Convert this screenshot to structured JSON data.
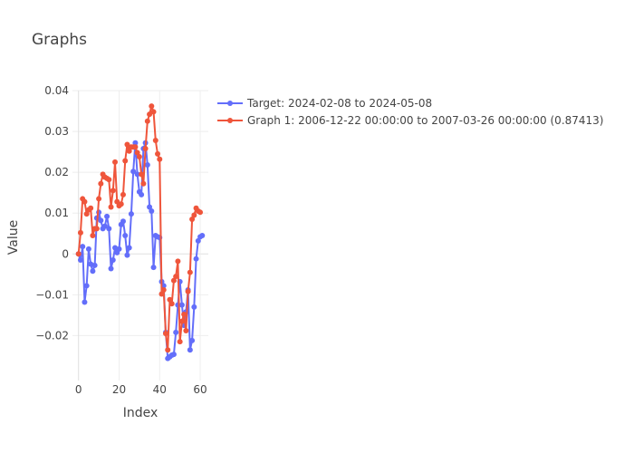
{
  "chart_data": {
    "type": "line",
    "title": "Graphs",
    "xlabel": "Index",
    "ylabel": "Value",
    "xlim": [
      -3,
      64
    ],
    "ylim": [
      -0.031,
      0.04
    ],
    "x_ticks": [
      0,
      20,
      40,
      60
    ],
    "y_ticks": [
      -0.02,
      -0.01,
      0,
      0.01,
      0.02,
      0.03,
      0.04
    ],
    "x_tick_labels": [
      "0",
      "20",
      "40",
      "60"
    ],
    "y_tick_labels": [
      "−0.02",
      "−0.01",
      "0",
      "0.01",
      "0.02",
      "0.03",
      "0.04"
    ],
    "grid": true,
    "legend_position": "right",
    "series": [
      {
        "name": "Target: 2024-02-08 to 2024-05-08",
        "color": "#636efa",
        "x": [
          0,
          1,
          2,
          3,
          4,
          5,
          6,
          7,
          8,
          9,
          10,
          11,
          12,
          13,
          14,
          15,
          16,
          17,
          18,
          19,
          20,
          21,
          22,
          23,
          24,
          25,
          26,
          27,
          28,
          29,
          30,
          31,
          32,
          33,
          34,
          35,
          36,
          37,
          38,
          39,
          40,
          41,
          42,
          43,
          44,
          45,
          46,
          47,
          48,
          49,
          50,
          51,
          52,
          53,
          54,
          55,
          56,
          57,
          58,
          59,
          60,
          61
        ],
        "y": [
          0.0,
          -0.0015,
          0.0018,
          -0.0118,
          -0.0078,
          0.0012,
          -0.0025,
          -0.0042,
          -0.0028,
          0.0088,
          0.0102,
          0.0082,
          0.0062,
          0.0068,
          0.0092,
          0.0062,
          -0.0036,
          -0.0015,
          0.0015,
          0.0003,
          0.0012,
          0.0072,
          0.008,
          0.0045,
          -0.0003,
          0.0015,
          0.0098,
          0.0202,
          0.0272,
          0.0195,
          0.0152,
          0.0145,
          0.0258,
          0.0272,
          0.0218,
          0.0115,
          0.0105,
          -0.0033,
          0.0045,
          0.0042,
          0.004,
          -0.0068,
          -0.0078,
          -0.0192,
          -0.0256,
          -0.0252,
          -0.0248,
          -0.0246,
          -0.0192,
          -0.0125,
          -0.0068,
          -0.0125,
          -0.0175,
          -0.0142,
          -0.0088,
          -0.0235,
          -0.0212,
          -0.013,
          -0.0012,
          0.0032,
          0.0042,
          0.0045
        ]
      },
      {
        "name": "Graph 1: 2006-12-22 00:00:00 to 2007-03-26 00:00:00 (0.87413)",
        "color": "#ef553b",
        "x": [
          0,
          1,
          2,
          3,
          4,
          5,
          6,
          7,
          8,
          9,
          10,
          11,
          12,
          13,
          14,
          15,
          16,
          17,
          18,
          19,
          20,
          21,
          22,
          23,
          24,
          25,
          26,
          27,
          28,
          29,
          30,
          31,
          32,
          33,
          34,
          35,
          36,
          37,
          38,
          39,
          40,
          41,
          42,
          43,
          44,
          45,
          46,
          47,
          48,
          49,
          50,
          51,
          52,
          53,
          54,
          55,
          56,
          57,
          58,
          59,
          60
        ],
        "y": [
          0.0,
          0.0052,
          0.0135,
          0.0128,
          0.0098,
          0.0108,
          0.0112,
          0.0045,
          0.0062,
          0.0062,
          0.0135,
          0.0172,
          0.0195,
          0.0188,
          0.0185,
          0.0182,
          0.0115,
          0.0155,
          0.0225,
          0.0128,
          0.0118,
          0.0122,
          0.0145,
          0.0228,
          0.0268,
          0.0252,
          0.0262,
          0.0262,
          0.0262,
          0.0248,
          0.0238,
          0.0195,
          0.0172,
          0.0258,
          0.0325,
          0.0342,
          0.0362,
          0.0348,
          0.0278,
          0.0245,
          0.0232,
          -0.0098,
          -0.0088,
          -0.0195,
          -0.0235,
          -0.0112,
          -0.0122,
          -0.0065,
          -0.0055,
          -0.0018,
          -0.0215,
          -0.0165,
          -0.0148,
          -0.0188,
          -0.0092,
          -0.0045,
          0.0085,
          0.0095,
          0.0112,
          0.0105,
          0.0102
        ]
      }
    ]
  }
}
